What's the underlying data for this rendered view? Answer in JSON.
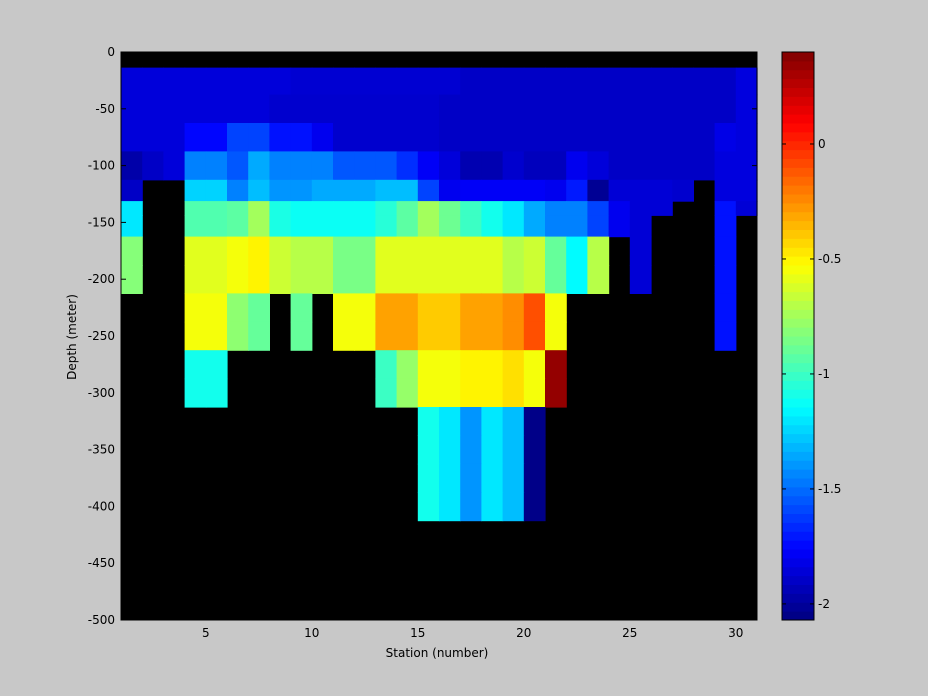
{
  "chart_data": {
    "type": "heatmap",
    "title": "",
    "xlabel": "Station (number)",
    "ylabel": "Depth (meter)",
    "xlim": [
      1,
      31
    ],
    "ylim": [
      -500,
      0
    ],
    "x_ticks": [
      5,
      10,
      15,
      20,
      25,
      30
    ],
    "y_ticks": [
      0,
      -50,
      -100,
      -150,
      -200,
      -250,
      -300,
      -350,
      -400,
      -450,
      -500
    ],
    "colorbar": {
      "colormap": "jet",
      "clim": [
        -2.07,
        0.4
      ],
      "ticks": [
        0,
        -0.5,
        -1,
        -1.5,
        -2
      ]
    },
    "missing_color": "#000000",
    "background_color": "#c8c8c8",
    "stations": [
      1.5,
      2.5,
      3.5,
      4.5,
      5.5,
      6.5,
      7.5,
      8.5,
      9.5,
      10.5,
      11.5,
      12.5,
      13.5,
      14.5,
      15.5,
      16.5,
      17.5,
      18.5,
      19.5,
      20.5,
      21.5,
      22.5,
      23.5,
      24.5,
      25.5,
      26.5,
      27.5,
      28.5,
      29.5,
      30.5
    ],
    "depths": [
      -2.5,
      -25,
      -50,
      -75,
      -100,
      -125,
      -137.5,
      -150,
      -175,
      -200,
      -225,
      -250,
      -275,
      -300,
      -325,
      -350,
      -375,
      -400
    ],
    "values": [
      [
        null,
        null,
        null,
        null,
        null,
        null,
        null,
        null,
        null,
        null,
        null,
        null,
        null,
        null,
        null,
        null,
        null,
        null,
        null,
        null,
        null,
        null,
        null,
        null,
        null,
        null,
        null,
        null,
        null,
        null
      ],
      [
        -1.85,
        -1.85,
        -1.85,
        -1.85,
        -1.85,
        -1.85,
        -1.85,
        -1.85,
        -1.87,
        -1.87,
        -1.87,
        -1.87,
        -1.87,
        -1.87,
        -1.87,
        -1.87,
        -1.9,
        -1.9,
        -1.9,
        -1.9,
        -1.9,
        -1.9,
        -1.9,
        -1.9,
        -1.9,
        -1.9,
        -1.9,
        -1.9,
        -1.9,
        -1.84
      ],
      [
        -1.85,
        -1.85,
        -1.85,
        -1.85,
        -1.85,
        -1.85,
        -1.85,
        -1.88,
        -1.88,
        -1.88,
        -1.88,
        -1.88,
        -1.88,
        -1.88,
        -1.88,
        -1.9,
        -1.9,
        -1.9,
        -1.9,
        -1.9,
        -1.9,
        -1.9,
        -1.9,
        -1.9,
        -1.9,
        -1.9,
        -1.9,
        -1.9,
        -1.9,
        -1.84
      ],
      [
        -1.85,
        -1.85,
        -1.85,
        -1.75,
        -1.75,
        -1.6,
        -1.6,
        -1.72,
        -1.72,
        -1.8,
        -1.88,
        -1.88,
        -1.88,
        -1.88,
        -1.88,
        -1.9,
        -1.9,
        -1.9,
        -1.9,
        -1.9,
        -1.9,
        -1.9,
        -1.9,
        -1.9,
        -1.9,
        -1.9,
        -1.9,
        -1.9,
        -1.82,
        -1.84
      ],
      [
        -1.97,
        -1.9,
        -1.85,
        -1.45,
        -1.45,
        -1.55,
        -1.35,
        -1.45,
        -1.45,
        -1.45,
        -1.55,
        -1.55,
        -1.55,
        -1.65,
        -1.78,
        -1.85,
        -1.95,
        -1.95,
        -1.88,
        -1.92,
        -1.92,
        -1.8,
        -1.85,
        -1.9,
        -1.9,
        -1.9,
        -1.9,
        -1.9,
        -1.84,
        -1.84
      ],
      [
        -1.9,
        null,
        null,
        -1.25,
        -1.25,
        -1.45,
        -1.3,
        -1.4,
        -1.4,
        -1.35,
        -1.35,
        -1.35,
        -1.3,
        -1.3,
        -1.6,
        -1.8,
        -1.78,
        -1.78,
        -1.78,
        -1.78,
        -1.8,
        -1.7,
        -2.02,
        -1.86,
        -1.86,
        -1.86,
        -1.88,
        null,
        -1.84,
        -1.84
      ],
      [
        -1.2,
        null,
        null,
        -0.95,
        -0.95,
        -0.92,
        -0.75,
        -1.08,
        -1.12,
        -1.12,
        -1.12,
        -1.12,
        -1.05,
        -0.92,
        -0.75,
        -0.88,
        -1.0,
        -1.1,
        -1.2,
        -1.35,
        -1.45,
        -1.45,
        -1.6,
        -1.8,
        -1.86,
        -1.86,
        null,
        null,
        -1.72,
        -1.86
      ],
      [
        -1.2,
        null,
        null,
        -0.95,
        -0.95,
        -0.92,
        -0.75,
        -1.08,
        -1.12,
        -1.12,
        -1.12,
        -1.12,
        -1.05,
        -0.92,
        -0.75,
        -0.88,
        -1.0,
        -1.1,
        -1.2,
        -1.35,
        -1.45,
        -1.45,
        -1.6,
        -1.8,
        -1.86,
        null,
        null,
        null,
        -1.72,
        null
      ],
      [
        -0.82,
        null,
        null,
        -0.6,
        -0.6,
        -0.55,
        -0.5,
        -0.65,
        -0.7,
        -0.7,
        -0.85,
        -0.85,
        -0.6,
        -0.6,
        -0.6,
        -0.6,
        -0.6,
        -0.6,
        -0.7,
        -0.65,
        -0.9,
        -1.15,
        -0.7,
        null,
        -1.86,
        null,
        null,
        null,
        -1.72,
        null
      ],
      [
        -0.82,
        null,
        null,
        -0.6,
        -0.6,
        -0.55,
        -0.5,
        -0.65,
        -0.7,
        -0.7,
        -0.85,
        -0.85,
        -0.6,
        -0.6,
        -0.6,
        -0.6,
        -0.6,
        -0.6,
        -0.7,
        -0.65,
        -0.9,
        -1.15,
        -0.7,
        null,
        -1.86,
        null,
        null,
        null,
        -1.72,
        null
      ],
      [
        null,
        null,
        null,
        -0.55,
        -0.55,
        -0.8,
        -0.9,
        null,
        -0.9,
        null,
        -0.55,
        -0.55,
        -0.3,
        -0.3,
        -0.4,
        -0.4,
        -0.3,
        -0.3,
        -0.25,
        -0.1,
        -0.55,
        null,
        null,
        null,
        null,
        null,
        null,
        null,
        -1.72,
        null
      ],
      [
        null,
        null,
        null,
        -0.55,
        -0.55,
        -0.8,
        -0.9,
        null,
        -0.9,
        null,
        -0.55,
        -0.55,
        -0.3,
        -0.3,
        -0.4,
        -0.4,
        -0.3,
        -0.3,
        -0.25,
        -0.1,
        -0.55,
        null,
        null,
        null,
        null,
        null,
        null,
        null,
        -1.72,
        null
      ],
      [
        null,
        null,
        null,
        -1.1,
        -1.1,
        null,
        null,
        null,
        null,
        null,
        null,
        null,
        -1.0,
        -0.78,
        -0.55,
        -0.55,
        -0.5,
        -0.5,
        -0.45,
        -0.55,
        0.35,
        null,
        null,
        null,
        null,
        null,
        null,
        null,
        null,
        null
      ],
      [
        null,
        null,
        null,
        -1.1,
        -1.1,
        null,
        null,
        null,
        null,
        null,
        null,
        null,
        -1.0,
        -0.78,
        -0.55,
        -0.55,
        -0.5,
        -0.5,
        -0.45,
        -0.55,
        0.35,
        null,
        null,
        null,
        null,
        null,
        null,
        null,
        null,
        null
      ],
      [
        null,
        null,
        null,
        null,
        null,
        null,
        null,
        null,
        null,
        null,
        null,
        null,
        null,
        null,
        -1.1,
        -1.2,
        -1.4,
        -1.2,
        -1.3,
        -2.05,
        null,
        null,
        null,
        null,
        null,
        null,
        null,
        null,
        null,
        null
      ],
      [
        null,
        null,
        null,
        null,
        null,
        null,
        null,
        null,
        null,
        null,
        null,
        null,
        null,
        null,
        -1.1,
        -1.2,
        -1.4,
        -1.2,
        -1.3,
        -2.05,
        null,
        null,
        null,
        null,
        null,
        null,
        null,
        null,
        null,
        null
      ],
      [
        null,
        null,
        null,
        null,
        null,
        null,
        null,
        null,
        null,
        null,
        null,
        null,
        null,
        null,
        -1.1,
        -1.2,
        -1.4,
        -1.2,
        -1.3,
        -2.05,
        null,
        null,
        null,
        null,
        null,
        null,
        null,
        null,
        null,
        null
      ],
      [
        null,
        null,
        null,
        null,
        null,
        null,
        null,
        null,
        null,
        null,
        null,
        null,
        null,
        null,
        -1.1,
        -1.2,
        -1.4,
        -1.2,
        -1.3,
        -2.05,
        null,
        null,
        null,
        null,
        null,
        null,
        null,
        null,
        null,
        null
      ]
    ]
  }
}
